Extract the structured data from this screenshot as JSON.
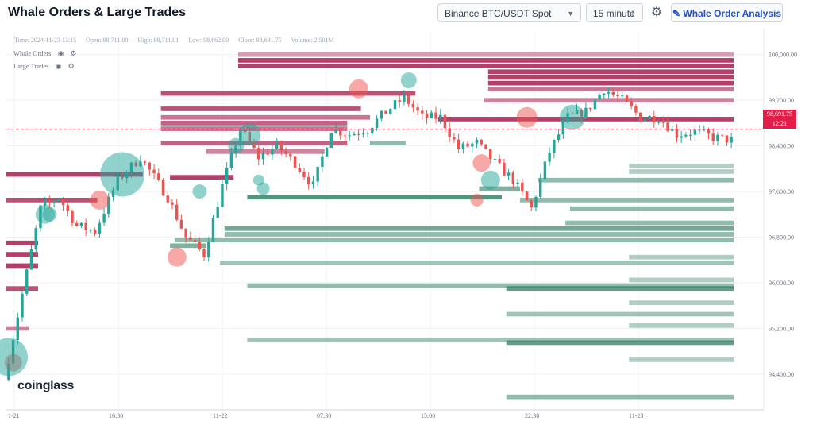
{
  "header": {
    "title": "Whale Orders & Large Trades",
    "exchange_select": "Binance BTC/USDT Spot",
    "interval_select": "15 minute",
    "analysis_button": "Whale Order Analysis"
  },
  "ohlc": {
    "time": "Time: 2024-11-23 13:15",
    "open": "Open: 98,711.00",
    "high": "High: 98,711.01",
    "low": "Low: 98,662.00",
    "close": "Close: 98,691.75",
    "volume": "Volume: 2.501M"
  },
  "legend": {
    "whale_orders": "Whale Orders",
    "large_trades": "Large Trades"
  },
  "brand": "coinglass",
  "price_tag": {
    "price": "98,691.75",
    "countdown": "12:21"
  },
  "colors": {
    "up": "#26a69a",
    "down": "#ef5350",
    "ask_wall": "#a3174a",
    "bid_wall": "#2e7d62"
  },
  "chart_data": {
    "type": "candlestick",
    "ylim": [
      93800,
      100400
    ],
    "y_ticks": [
      94400,
      95200,
      96000,
      96800,
      97600,
      98400,
      99200,
      100000
    ],
    "y_tick_labels": [
      "94,400.00",
      "95,200.00",
      "96,000.00",
      "96,800.00",
      "97,600.00",
      "98,400.00",
      "99,200.00",
      "100,000.00"
    ],
    "x_tick_labels": [
      "1-21",
      "16:30",
      "11-22",
      "07:30",
      "15:00",
      "22:30",
      "11-23"
    ],
    "last_price": 98691.75,
    "close_path": [
      [
        0,
        94300
      ],
      [
        4,
        95800
      ],
      [
        8,
        97300
      ],
      [
        12,
        97500
      ],
      [
        16,
        97000
      ],
      [
        20,
        96900
      ],
      [
        25,
        97800
      ],
      [
        30,
        98200
      ],
      [
        36,
        97500
      ],
      [
        40,
        96800
      ],
      [
        44,
        96500
      ],
      [
        48,
        97700
      ],
      [
        52,
        98700
      ],
      [
        56,
        98200
      ],
      [
        60,
        98400
      ],
      [
        64,
        98100
      ],
      [
        68,
        97700
      ],
      [
        72,
        98700
      ],
      [
        76,
        98600
      ],
      [
        80,
        98700
      ],
      [
        84,
        99000
      ],
      [
        88,
        99250
      ],
      [
        92,
        98900
      ],
      [
        96,
        98900
      ],
      [
        100,
        98350
      ],
      [
        104,
        98450
      ],
      [
        108,
        98100
      ],
      [
        112,
        97800
      ],
      [
        116,
        97300
      ],
      [
        120,
        98300
      ],
      [
        124,
        98900
      ],
      [
        128,
        99000
      ],
      [
        132,
        99400
      ],
      [
        136,
        99200
      ],
      [
        140,
        98900
      ],
      [
        144,
        98900
      ],
      [
        148,
        98600
      ],
      [
        152,
        98650
      ],
      [
        156,
        98550
      ],
      [
        160,
        98500
      ]
    ],
    "whale_bubbles": [
      {
        "i": 1,
        "price": 94600,
        "side": "sell",
        "size": 11
      },
      {
        "i": 0,
        "price": 94700,
        "side": "buy",
        "size": 24
      },
      {
        "i": 8,
        "price": 97200,
        "side": "buy",
        "size": 12
      },
      {
        "i": 9,
        "price": 97200,
        "side": "buy",
        "size": 9
      },
      {
        "i": 20,
        "price": 97450,
        "side": "sell",
        "size": 12
      },
      {
        "i": 25,
        "price": 97900,
        "side": "buy",
        "size": 28
      },
      {
        "i": 37,
        "price": 96450,
        "side": "sell",
        "size": 12
      },
      {
        "i": 42,
        "price": 97600,
        "side": "buy",
        "size": 9
      },
      {
        "i": 50,
        "price": 98400,
        "side": "buy",
        "size": 10
      },
      {
        "i": 53,
        "price": 98600,
        "side": "buy",
        "size": 14
      },
      {
        "i": 55,
        "price": 97800,
        "side": "buy",
        "size": 7
      },
      {
        "i": 56,
        "price": 97650,
        "side": "buy",
        "size": 8
      },
      {
        "i": 77,
        "price": 99400,
        "side": "sell",
        "size": 12
      },
      {
        "i": 88,
        "price": 99550,
        "side": "buy",
        "size": 10
      },
      {
        "i": 104,
        "price": 98100,
        "side": "sell",
        "size": 11
      },
      {
        "i": 106,
        "price": 97800,
        "side": "buy",
        "size": 12
      },
      {
        "i": 103,
        "price": 97450,
        "side": "sell",
        "size": 8
      },
      {
        "i": 114,
        "price": 98900,
        "side": "sell",
        "size": 13
      },
      {
        "i": 124,
        "price": 98900,
        "side": "buy",
        "size": 16
      }
    ],
    "order_walls": [
      {
        "price": 100000,
        "start": 51,
        "end": 160,
        "side": "ask",
        "strength": 0.35
      },
      {
        "price": 99900,
        "start": 51,
        "end": 160,
        "side": "ask",
        "strength": 0.9
      },
      {
        "price": 99800,
        "start": 51,
        "end": 160,
        "side": "ask",
        "strength": 0.9
      },
      {
        "price": 99700,
        "start": 106,
        "end": 160,
        "side": "ask",
        "strength": 0.9
      },
      {
        "price": 99600,
        "start": 106,
        "end": 160,
        "side": "ask",
        "strength": 0.9
      },
      {
        "price": 99500,
        "start": 106,
        "end": 160,
        "side": "ask",
        "strength": 0.9
      },
      {
        "price": 99400,
        "start": 106,
        "end": 160,
        "side": "ask",
        "strength": 0.6
      },
      {
        "price": 99320,
        "start": 34,
        "end": 90,
        "side": "ask",
        "strength": 0.8
      },
      {
        "price": 99200,
        "start": 105,
        "end": 160,
        "side": "ask",
        "strength": 0.5
      },
      {
        "price": 99050,
        "start": 34,
        "end": 78,
        "side": "ask",
        "strength": 0.8
      },
      {
        "price": 98900,
        "start": 34,
        "end": 80,
        "side": "ask",
        "strength": 0.6
      },
      {
        "price": 98870,
        "start": 95,
        "end": 160,
        "side": "ask",
        "strength": 0.9
      },
      {
        "price": 98800,
        "start": 34,
        "end": 75,
        "side": "ask",
        "strength": 0.7
      },
      {
        "price": 98700,
        "start": 34,
        "end": 75,
        "side": "ask",
        "strength": 0.6
      },
      {
        "price": 98450,
        "start": 34,
        "end": 75,
        "side": "ask",
        "strength": 0.7
      },
      {
        "price": 98300,
        "start": 44,
        "end": 70,
        "side": "ask",
        "strength": 0.5
      },
      {
        "price": 97900,
        "start": 0,
        "end": 30,
        "side": "ask",
        "strength": 0.9
      },
      {
        "price": 97850,
        "start": 36,
        "end": 50,
        "side": "ask",
        "strength": 0.9
      },
      {
        "price": 97450,
        "start": 0,
        "end": 20,
        "side": "ask",
        "strength": 0.8
      },
      {
        "price": 96700,
        "start": 0,
        "end": 7,
        "side": "ask",
        "strength": 0.9
      },
      {
        "price": 96500,
        "start": 0,
        "end": 7,
        "side": "ask",
        "strength": 0.9
      },
      {
        "price": 96300,
        "start": 0,
        "end": 7,
        "side": "ask",
        "strength": 0.9
      },
      {
        "price": 95900,
        "start": 0,
        "end": 7,
        "side": "ask",
        "strength": 0.8
      },
      {
        "price": 95200,
        "start": 0,
        "end": 5,
        "side": "ask",
        "strength": 0.5
      },
      {
        "price": 98450,
        "start": 80,
        "end": 88,
        "side": "bid",
        "strength": 0.5
      },
      {
        "price": 98050,
        "start": 137,
        "end": 160,
        "side": "bid",
        "strength": 0.3
      },
      {
        "price": 97950,
        "start": 137,
        "end": 160,
        "side": "bid",
        "strength": 0.3
      },
      {
        "price": 97800,
        "start": 117,
        "end": 160,
        "side": "bid",
        "strength": 0.5
      },
      {
        "price": 97650,
        "start": 104,
        "end": 113,
        "side": "bid",
        "strength": 0.6
      },
      {
        "price": 97500,
        "start": 53,
        "end": 109,
        "side": "bid",
        "strength": 0.9
      },
      {
        "price": 97450,
        "start": 113,
        "end": 160,
        "side": "bid",
        "strength": 0.5
      },
      {
        "price": 97300,
        "start": 124,
        "end": 160,
        "side": "bid",
        "strength": 0.5
      },
      {
        "price": 97050,
        "start": 123,
        "end": 160,
        "side": "bid",
        "strength": 0.5
      },
      {
        "price": 96950,
        "start": 48,
        "end": 160,
        "side": "bid",
        "strength": 0.7
      },
      {
        "price": 96850,
        "start": 48,
        "end": 160,
        "side": "bid",
        "strength": 0.5
      },
      {
        "price": 96750,
        "start": 37,
        "end": 160,
        "side": "bid",
        "strength": 0.5
      },
      {
        "price": 96650,
        "start": 36,
        "end": 44,
        "side": "bid",
        "strength": 0.6
      },
      {
        "price": 96450,
        "start": 137,
        "end": 160,
        "side": "bid",
        "strength": 0.3
      },
      {
        "price": 96350,
        "start": 47,
        "end": 160,
        "side": "bid",
        "strength": 0.4
      },
      {
        "price": 96050,
        "start": 137,
        "end": 160,
        "side": "bid",
        "strength": 0.3
      },
      {
        "price": 95950,
        "start": 53,
        "end": 160,
        "side": "bid",
        "strength": 0.5
      },
      {
        "price": 95900,
        "start": 110,
        "end": 160,
        "side": "bid",
        "strength": 0.8
      },
      {
        "price": 95650,
        "start": 137,
        "end": 160,
        "side": "bid",
        "strength": 0.3
      },
      {
        "price": 95450,
        "start": 110,
        "end": 160,
        "side": "bid",
        "strength": 0.4
      },
      {
        "price": 95250,
        "start": 137,
        "end": 160,
        "side": "bid",
        "strength": 0.3
      },
      {
        "price": 95000,
        "start": 53,
        "end": 160,
        "side": "bid",
        "strength": 0.4
      },
      {
        "price": 94950,
        "start": 110,
        "end": 160,
        "side": "bid",
        "strength": 0.8
      },
      {
        "price": 94650,
        "start": 137,
        "end": 160,
        "side": "bid",
        "strength": 0.3
      },
      {
        "price": 94000,
        "start": 110,
        "end": 160,
        "side": "bid",
        "strength": 0.5
      }
    ]
  }
}
